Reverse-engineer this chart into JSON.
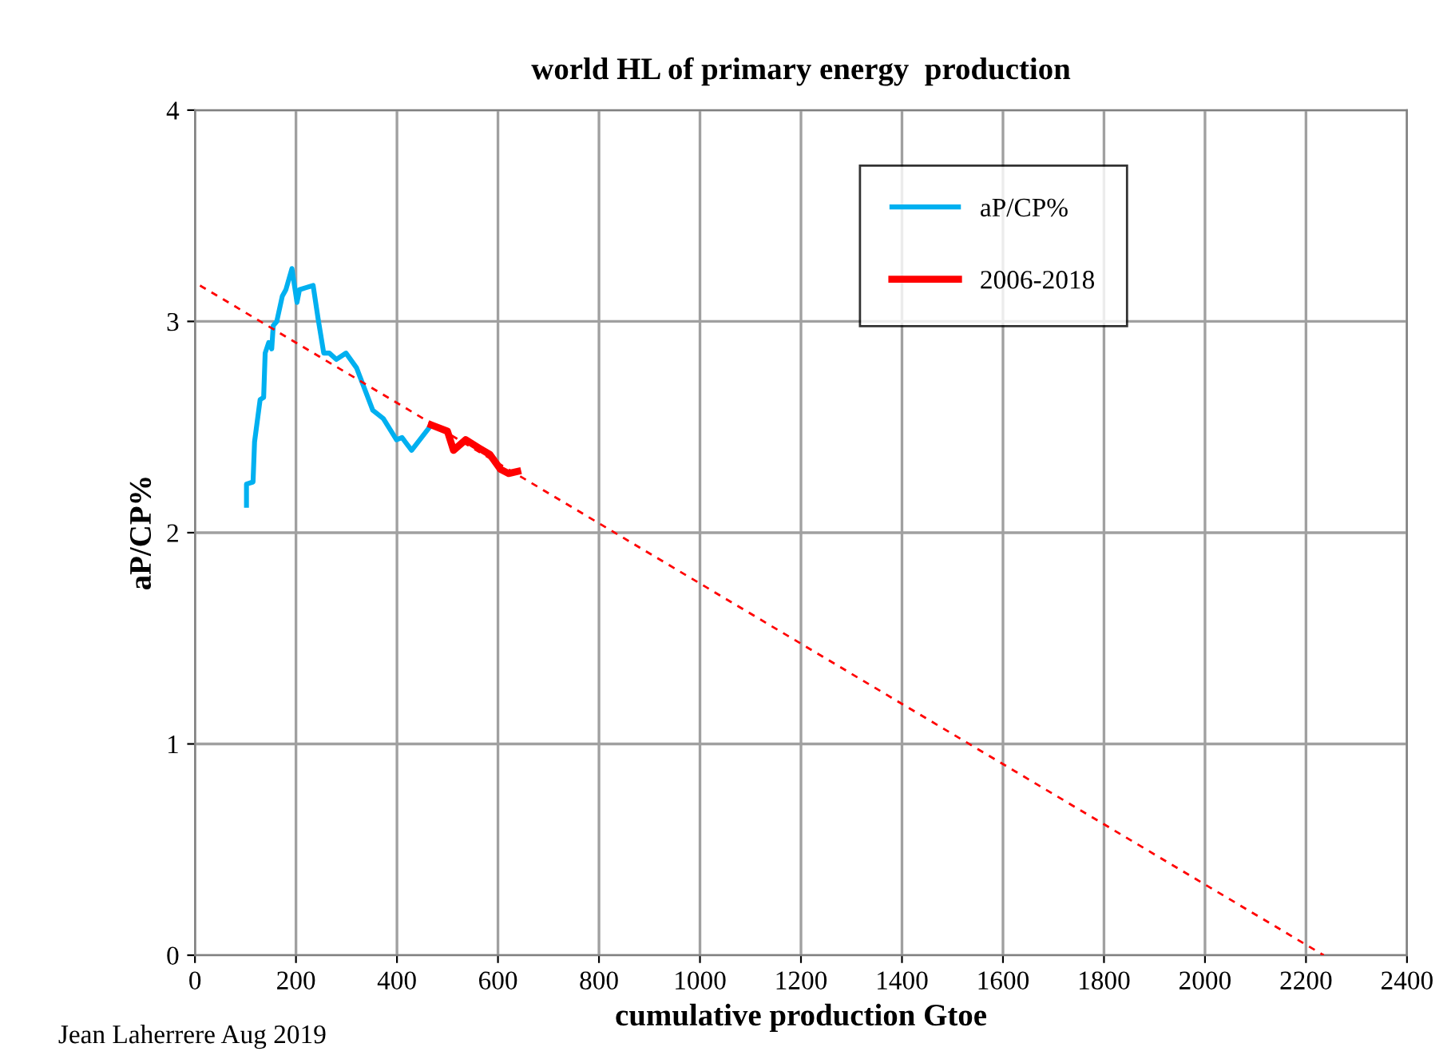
{
  "chart_data": {
    "type": "line",
    "title": "world HL of primary energy  production",
    "xlabel": "cumulative production Gtoe",
    "ylabel": "aP/CP%",
    "annotations": [
      "Jean Laherrere Aug 2019"
    ],
    "xlim": [
      0,
      2400
    ],
    "xticks": [
      0,
      200,
      400,
      600,
      800,
      1000,
      1200,
      1400,
      1600,
      1800,
      2000,
      2200,
      2400
    ],
    "ylim": [
      0,
      4
    ],
    "yticks": [
      0,
      1,
      2,
      3,
      4
    ],
    "grid": true,
    "legend": "top right",
    "series": [
      {
        "name": "aP/CP%",
        "color": "#00b0f0",
        "x": [
          102,
          102,
          115,
          118,
          129,
          136,
          139,
          146,
          152,
          155,
          162,
          173,
          180,
          192,
          202,
          207,
          220,
          234,
          244,
          255,
          266,
          280,
          299,
          320,
          352,
          373,
          399,
          410,
          429,
          468
        ],
        "values": [
          2.13,
          2.23,
          2.24,
          2.43,
          2.63,
          2.64,
          2.85,
          2.9,
          2.87,
          2.98,
          3.0,
          3.12,
          3.15,
          3.25,
          3.09,
          3.15,
          3.16,
          3.17,
          3.01,
          2.85,
          2.85,
          2.82,
          2.85,
          2.78,
          2.58,
          2.54,
          2.44,
          2.45,
          2.39,
          2.51
        ]
      },
      {
        "name": "2006-2018",
        "color": "#ff0000",
        "x": [
          468,
          500,
          512,
          536,
          563,
          584,
          605,
          621,
          639
        ],
        "values": [
          2.51,
          2.48,
          2.39,
          2.44,
          2.4,
          2.37,
          2.3,
          2.28,
          2.29
        ]
      },
      {
        "color": "#ff0000",
        "line_style": "dashed",
        "x": [
          10,
          2235
        ],
        "values": [
          3.17,
          0
        ]
      }
    ]
  }
}
